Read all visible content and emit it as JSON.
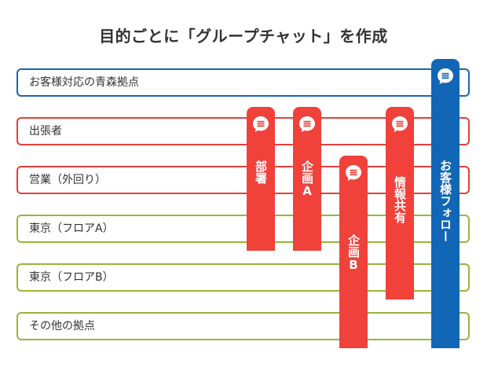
{
  "title": "目的ごとに「グループチャット」を作成",
  "rows": [
    {
      "label": "お客様対応の青森拠点",
      "color": "#1b64b0"
    },
    {
      "label": "出張者",
      "color": "#e2403b"
    },
    {
      "label": "営業（外回り）",
      "color": "#e2403b"
    },
    {
      "label": "東京（フロアA）",
      "color": "#94b73a"
    },
    {
      "label": "東京（フロアB）",
      "color": "#94b73a"
    },
    {
      "label": "その他の拠点",
      "color": "#94b73a"
    }
  ],
  "groups": [
    {
      "label": "部署",
      "icon": "chat-bubble-icon",
      "color": "#f0413a"
    },
    {
      "label": "企画A",
      "icon": "chat-bubble-icon",
      "color": "#f0413a"
    },
    {
      "label": "企画B",
      "icon": "chat-bubble-icon",
      "color": "#f0413a"
    },
    {
      "label": "情報共有",
      "icon": "chat-bubble-icon",
      "color": "#f0413a"
    },
    {
      "label": "お客様フォロー",
      "icon": "chat-bubble-icon",
      "color": "#1266b6"
    }
  ]
}
